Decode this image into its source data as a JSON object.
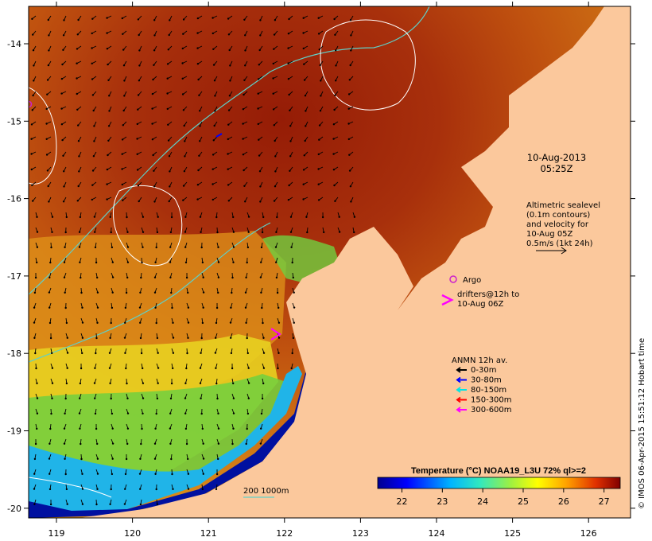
{
  "map": {
    "date": "10-Aug-2013",
    "time": "05:25Z",
    "altimetry_lines": [
      "Altimetric sealevel",
      "(0.1m contours)",
      "and velocity for",
      "10-Aug 05Z",
      "0.5m/s (1kt 24h)"
    ],
    "argo_label": "Argo",
    "drifters_lines": [
      "drifters@12h to",
      "10-Aug 06Z"
    ],
    "anmn_title": "ANMN 12h av.",
    "anmn_legend": [
      {
        "label": "0-30m",
        "color": "#000000"
      },
      {
        "label": "30-80m",
        "color": "#0000ff"
      },
      {
        "label": "80-150m",
        "color": "#00e5e5"
      },
      {
        "label": "150-300m",
        "color": "#ff0000"
      },
      {
        "label": "300-600m",
        "color": "#ff00ff"
      }
    ],
    "isobath_label": "200  1000m",
    "colorbar_title": "Temperature (°C) NOAA19_L3U 72% ql>=2",
    "colorbar_ticks": [
      "22",
      "23",
      "24",
      "25",
      "26",
      "27"
    ],
    "colorbar_range": [
      21.4,
      27.4
    ],
    "credit": "© IMOS 06-Apr-2015 15:51:12 Hobart time",
    "lon_ticks": [
      "119",
      "120",
      "121",
      "122",
      "123",
      "124",
      "125",
      "126"
    ],
    "lat_ticks": [
      "-14",
      "-15",
      "-16",
      "-17",
      "-18",
      "-19",
      "-20"
    ],
    "colors": {
      "land": "#fbc89c",
      "warm": "#a52a0a",
      "isobath_200": "#5fd0c8",
      "sealevel_contour": "#ffffff",
      "argo": "#cc22cc",
      "drifter": "#ff00ff"
    }
  }
}
